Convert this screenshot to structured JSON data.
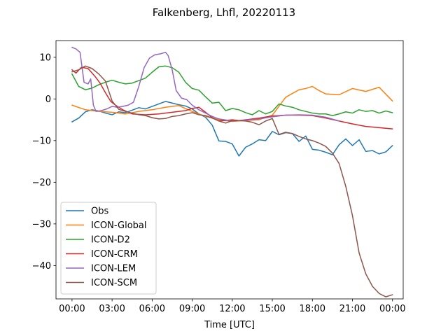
{
  "chart_data": {
    "type": "line",
    "title": "Falkenberg, Lhfl, 20220113",
    "xlabel": "Time [UTC]",
    "ylabel": "",
    "xlim": [
      -1.2,
      24.8
    ],
    "ylim": [
      -48,
      14
    ],
    "xticks": [
      {
        "value": 0,
        "label": "00:00"
      },
      {
        "value": 3,
        "label": "03:00"
      },
      {
        "value": 6,
        "label": "06:00"
      },
      {
        "value": 9,
        "label": "09:00"
      },
      {
        "value": 12,
        "label": "12:00"
      },
      {
        "value": 15,
        "label": "15:00"
      },
      {
        "value": 18,
        "label": "18:00"
      },
      {
        "value": 21,
        "label": "21:00"
      },
      {
        "value": 24,
        "label": "00:00"
      }
    ],
    "yticks": [
      {
        "value": 10,
        "label": "10"
      },
      {
        "value": 0,
        "label": "0"
      },
      {
        "value": -10,
        "label": "−10"
      },
      {
        "value": -20,
        "label": "−20"
      },
      {
        "value": -30,
        "label": "−30"
      },
      {
        "value": -40,
        "label": "−40"
      }
    ],
    "grid": false,
    "legend": "lower-left",
    "series": [
      {
        "name": "Obs",
        "color": "#1f77b4",
        "points": [
          [
            0,
            -5.5
          ],
          [
            0.5,
            -4.6
          ],
          [
            1,
            -3.1
          ],
          [
            1.5,
            -2.6
          ],
          [
            2,
            -2.9
          ],
          [
            2.5,
            -3.4
          ],
          [
            3,
            -3.8
          ],
          [
            3.5,
            -3.1
          ],
          [
            4,
            -3.3
          ],
          [
            4.5,
            -2.7
          ],
          [
            5,
            -2.1
          ],
          [
            5.5,
            -2.4
          ],
          [
            6,
            -1.8
          ],
          [
            6.5,
            -1.2
          ],
          [
            7,
            -0.6
          ],
          [
            7.5,
            -1.0
          ],
          [
            8,
            -1.4
          ],
          [
            8.5,
            -1.7
          ],
          [
            9,
            -2.4
          ],
          [
            9.5,
            -3.6
          ],
          [
            10,
            -4.4
          ],
          [
            10.5,
            -6.3
          ],
          [
            11,
            -10.1
          ],
          [
            11.5,
            -10.2
          ],
          [
            12,
            -10.8
          ],
          [
            12.5,
            -13.7
          ],
          [
            13,
            -11.6
          ],
          [
            13.5,
            -10.8
          ],
          [
            14,
            -9.8
          ],
          [
            14.5,
            -10.0
          ],
          [
            15,
            -7.8
          ],
          [
            15.5,
            -8.6
          ],
          [
            16,
            -8.1
          ],
          [
            16.5,
            -8.3
          ],
          [
            17,
            -10.2
          ],
          [
            17.5,
            -8.9
          ],
          [
            18,
            -12.1
          ],
          [
            18.5,
            -12.3
          ],
          [
            19,
            -12.8
          ],
          [
            19.5,
            -13.4
          ],
          [
            20,
            -11.0
          ],
          [
            20.5,
            -9.6
          ],
          [
            21,
            -11.2
          ],
          [
            21.5,
            -9.8
          ],
          [
            22,
            -12.6
          ],
          [
            22.5,
            -12.4
          ],
          [
            23,
            -13.2
          ],
          [
            23.5,
            -12.7
          ],
          [
            24,
            -11.2
          ]
        ]
      },
      {
        "name": "ICON-Global",
        "color": "#ff7f0e",
        "points": [
          [
            0,
            -1.5
          ],
          [
            1,
            -2.6
          ],
          [
            2,
            -3.0
          ],
          [
            3,
            -3.2
          ],
          [
            4,
            -3.6
          ],
          [
            5,
            -3.0
          ],
          [
            6,
            -2.6
          ],
          [
            7,
            -2.0
          ],
          [
            8,
            -1.6
          ],
          [
            9,
            -3.0
          ],
          [
            10,
            -4.2
          ],
          [
            11,
            -5.0
          ],
          [
            12,
            -5.4
          ],
          [
            13,
            -5.2
          ],
          [
            14,
            -5.0
          ],
          [
            15,
            -3.9
          ],
          [
            16,
            0.4
          ],
          [
            17,
            2.2
          ],
          [
            17.5,
            2.5
          ],
          [
            18,
            3.0
          ],
          [
            18.5,
            2.0
          ],
          [
            19,
            1.2
          ],
          [
            20,
            1.0
          ],
          [
            21,
            2.5
          ],
          [
            22,
            1.8
          ],
          [
            23,
            2.8
          ],
          [
            24,
            -0.5
          ]
        ]
      },
      {
        "name": "ICON-D2",
        "color": "#2ca02c",
        "points": [
          [
            0,
            6.0
          ],
          [
            0.5,
            3.0
          ],
          [
            1,
            2.2
          ],
          [
            1.5,
            2.6
          ],
          [
            2,
            3.4
          ],
          [
            2.5,
            4.0
          ],
          [
            3,
            4.5
          ],
          [
            3.5,
            4.0
          ],
          [
            4,
            3.6
          ],
          [
            4.5,
            3.8
          ],
          [
            5,
            4.4
          ],
          [
            5.5,
            5.0
          ],
          [
            6,
            6.4
          ],
          [
            6.5,
            7.7
          ],
          [
            7,
            7.9
          ],
          [
            7.5,
            7.5
          ],
          [
            8,
            6.4
          ],
          [
            8.5,
            4.0
          ],
          [
            9,
            2.5
          ],
          [
            9.5,
            2.1
          ],
          [
            10,
            0.5
          ],
          [
            10.5,
            -1.0
          ],
          [
            11,
            -0.8
          ],
          [
            11.5,
            -2.8
          ],
          [
            12,
            -2.3
          ],
          [
            12.5,
            -2.6
          ],
          [
            13,
            -3.3
          ],
          [
            13.5,
            -3.8
          ],
          [
            14,
            -2.8
          ],
          [
            14.5,
            -3.6
          ],
          [
            15,
            -3.0
          ],
          [
            15.5,
            -1.2
          ],
          [
            16,
            -1.7
          ],
          [
            16.5,
            -2.0
          ],
          [
            17,
            -2.6
          ],
          [
            17.5,
            -3.0
          ],
          [
            18,
            -3.4
          ],
          [
            18.5,
            -3.6
          ],
          [
            19,
            -3.6
          ],
          [
            19.5,
            -4.0
          ],
          [
            20,
            -3.6
          ],
          [
            20.5,
            -3.1
          ],
          [
            21,
            -3.4
          ],
          [
            21.5,
            -2.6
          ],
          [
            22,
            -3.0
          ],
          [
            22.5,
            -2.8
          ],
          [
            23,
            -3.4
          ],
          [
            23.5,
            -2.9
          ],
          [
            24,
            -3.3
          ]
        ]
      },
      {
        "name": "ICON-CRM",
        "color": "#d62728",
        "points": [
          [
            0,
            7.0
          ],
          [
            0.3,
            6.2
          ],
          [
            0.7,
            7.6
          ],
          [
            1.2,
            7.3
          ],
          [
            1.7,
            5.5
          ],
          [
            2.1,
            3.8
          ],
          [
            2.5,
            1.5
          ],
          [
            2.9,
            -0.6
          ],
          [
            3.3,
            -1.6
          ],
          [
            3.8,
            -2.6
          ],
          [
            4.5,
            -3.6
          ],
          [
            5.5,
            -3.8
          ],
          [
            6.5,
            -3.6
          ],
          [
            7.5,
            -3.2
          ],
          [
            8.5,
            -2.8
          ],
          [
            9,
            -2.3
          ],
          [
            9.5,
            -2.0
          ],
          [
            10,
            -3.2
          ],
          [
            10.5,
            -4.5
          ],
          [
            11,
            -5.3
          ],
          [
            12,
            -5.0
          ],
          [
            12.5,
            -5.2
          ],
          [
            13,
            -5.0
          ],
          [
            14,
            -4.6
          ],
          [
            15,
            -4.1
          ],
          [
            16,
            -3.9
          ],
          [
            17,
            -3.9
          ],
          [
            18,
            -4.0
          ],
          [
            19,
            -4.6
          ],
          [
            20,
            -5.3
          ],
          [
            21,
            -6.0
          ],
          [
            22,
            -6.6
          ],
          [
            23,
            -6.9
          ],
          [
            24,
            -7.2
          ]
        ]
      },
      {
        "name": "ICON-LEM",
        "color": "#9467bd",
        "points": [
          [
            0,
            12.4
          ],
          [
            0.3,
            12.0
          ],
          [
            0.6,
            11.2
          ],
          [
            0.9,
            4.0
          ],
          [
            1.2,
            3.6
          ],
          [
            1.4,
            4.8
          ],
          [
            1.6,
            -1.5
          ],
          [
            1.8,
            -3.0
          ],
          [
            2.2,
            -2.8
          ],
          [
            2.6,
            -2.4
          ],
          [
            3.0,
            -1.8
          ],
          [
            3.4,
            -2.0
          ],
          [
            3.8,
            -1.8
          ],
          [
            4.2,
            -1.5
          ],
          [
            4.6,
            -0.8
          ],
          [
            5.0,
            3.0
          ],
          [
            5.4,
            7.5
          ],
          [
            5.8,
            9.8
          ],
          [
            6.2,
            10.6
          ],
          [
            6.6,
            10.8
          ],
          [
            7.0,
            11.2
          ],
          [
            7.2,
            10.4
          ],
          [
            7.5,
            7.0
          ],
          [
            7.8,
            2.0
          ],
          [
            8.2,
            0.2
          ],
          [
            8.6,
            -0.2
          ],
          [
            9,
            -1.5
          ],
          [
            9.5,
            -2.6
          ],
          [
            10,
            -3.4
          ],
          [
            10.5,
            -4.2
          ],
          [
            11,
            -4.8
          ],
          [
            12,
            -5.3
          ],
          [
            13,
            -5.1
          ],
          [
            14,
            -4.8
          ],
          [
            15,
            -4.3
          ],
          [
            16,
            -3.9
          ],
          [
            17,
            -3.8
          ],
          [
            18,
            -3.9
          ],
          [
            19,
            -4.4
          ],
          [
            20,
            -5.3
          ]
        ]
      },
      {
        "name": "ICON-SCM",
        "color": "#8c564b",
        "points": [
          [
            0,
            6.5
          ],
          [
            0.5,
            7.0
          ],
          [
            1,
            7.9
          ],
          [
            1.5,
            7.3
          ],
          [
            2,
            6.0
          ],
          [
            2.5,
            4.3
          ],
          [
            3,
            -0.5
          ],
          [
            3.5,
            -2.5
          ],
          [
            4,
            -3.0
          ],
          [
            4.5,
            -3.4
          ],
          [
            5,
            -3.8
          ],
          [
            5.5,
            -4.0
          ],
          [
            6,
            -4.5
          ],
          [
            6.5,
            -4.8
          ],
          [
            7,
            -4.7
          ],
          [
            7.5,
            -4.2
          ],
          [
            8,
            -4.0
          ],
          [
            8.5,
            -3.6
          ],
          [
            9,
            -3.3
          ],
          [
            9.5,
            -3.8
          ],
          [
            10,
            -4.0
          ],
          [
            10.5,
            -4.6
          ],
          [
            11,
            -5.3
          ],
          [
            11.5,
            -5.8
          ],
          [
            12,
            -5.2
          ],
          [
            12.5,
            -5.2
          ],
          [
            13,
            -5.3
          ],
          [
            13.5,
            -5.6
          ],
          [
            14,
            -6.2
          ],
          [
            14.5,
            -5.3
          ],
          [
            15,
            -4.7
          ],
          [
            15.5,
            -8.5
          ],
          [
            16,
            -8.0
          ],
          [
            16.5,
            -8.3
          ],
          [
            17,
            -9.0
          ],
          [
            17.5,
            -9.6
          ],
          [
            18,
            -10.0
          ],
          [
            18.5,
            -10.6
          ],
          [
            19,
            -11.4
          ],
          [
            19.5,
            -13.0
          ],
          [
            20,
            -15.5
          ],
          [
            20.5,
            -21.0
          ],
          [
            21,
            -28.0
          ],
          [
            21.5,
            -37.0
          ],
          [
            22,
            -42.0
          ],
          [
            22.5,
            -45.0
          ],
          [
            23,
            -46.7
          ],
          [
            23.5,
            -47.5
          ],
          [
            24,
            -47.0
          ]
        ]
      }
    ]
  }
}
